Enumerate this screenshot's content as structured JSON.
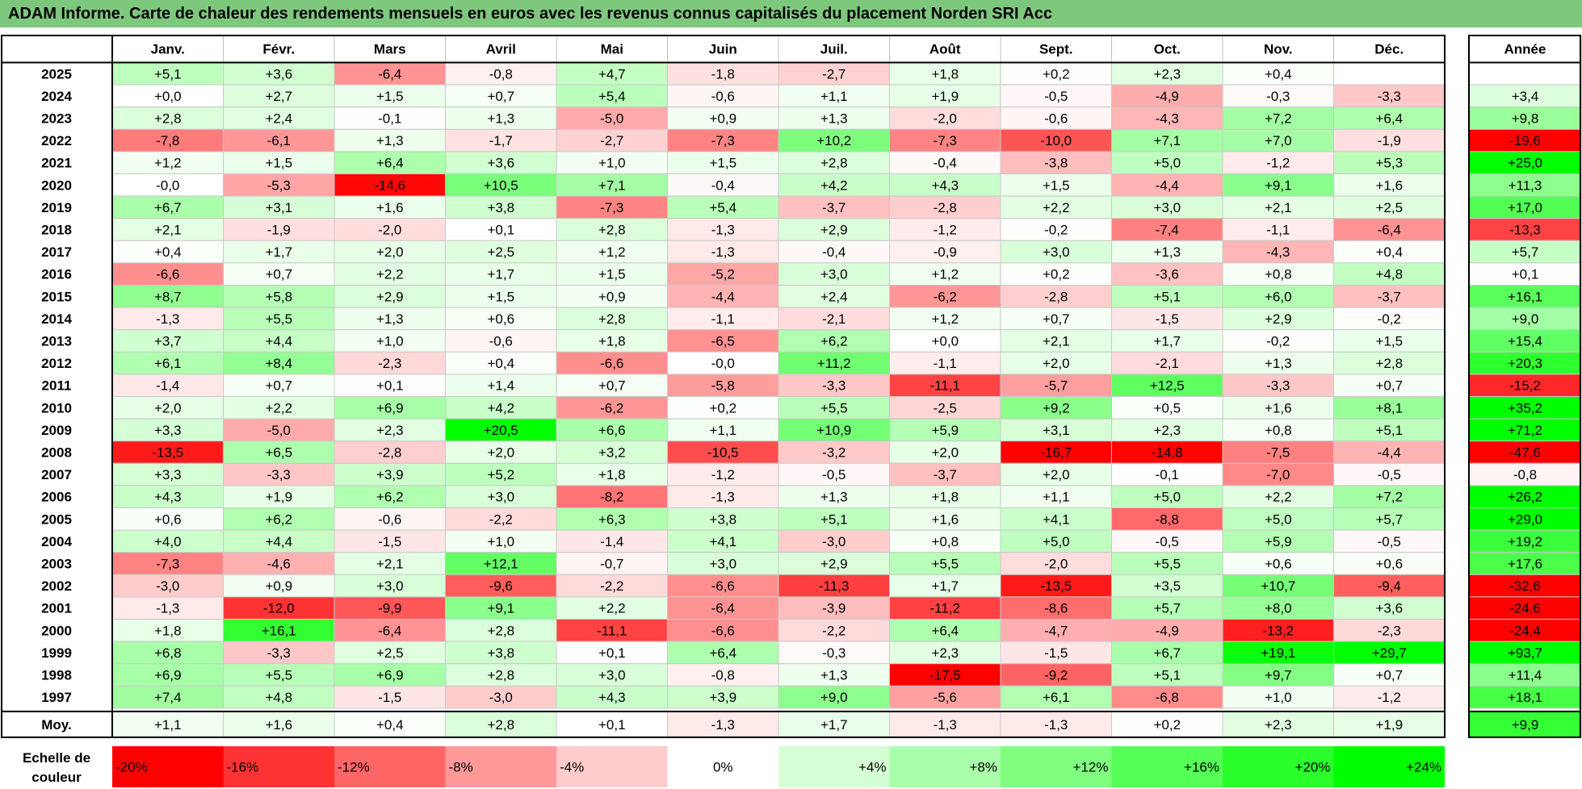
{
  "title": "ADAM Informe. Carte de chaleur des rendements mensuels en euros avec les revenus connus capitalisés du placement Norden SRI Acc",
  "chart_data": {
    "type": "heatmap",
    "months": [
      "Janv.",
      "Févr.",
      "Mars",
      "Avril",
      "Mai",
      "Juin",
      "Juil.",
      "Août",
      "Sept.",
      "Oct.",
      "Nov.",
      "Déc."
    ],
    "year_header": "Année",
    "rows": [
      {
        "year": "2025",
        "values": [
          "+5,1",
          "+3,6",
          "-6,4",
          "-0,8",
          "+4,7",
          "-1,8",
          "-2,7",
          "+1,8",
          "+0,2",
          "+2,3",
          "+0,4",
          ""
        ],
        "annual": ""
      },
      {
        "year": "2024",
        "values": [
          "+0,0",
          "+2,7",
          "+1,5",
          "+0,7",
          "+5,4",
          "-0,6",
          "+1,1",
          "+1,9",
          "-0,5",
          "-4,9",
          "-0,3",
          "-3,3"
        ],
        "annual": "+3,4"
      },
      {
        "year": "2023",
        "values": [
          "+2,8",
          "+2,4",
          "-0,1",
          "+1,3",
          "-5,0",
          "+0,9",
          "+1,3",
          "-2,0",
          "-0,6",
          "-4,3",
          "+7,2",
          "+6,4"
        ],
        "annual": "+9,8"
      },
      {
        "year": "2022",
        "values": [
          "-7,8",
          "-6,1",
          "+1,3",
          "-1,7",
          "-2,7",
          "-7,3",
          "+10,2",
          "-7,3",
          "-10,0",
          "+7,1",
          "+7,0",
          "-1,9"
        ],
        "annual": "-19,6"
      },
      {
        "year": "2021",
        "values": [
          "+1,2",
          "+1,5",
          "+6,4",
          "+3,6",
          "+1,0",
          "+1,5",
          "+2,8",
          "-0,4",
          "-3,8",
          "+5,0",
          "-1,2",
          "+5,3"
        ],
        "annual": "+25,0"
      },
      {
        "year": "2020",
        "values": [
          "-0,0",
          "-5,3",
          "-14,6",
          "+10,5",
          "+7,1",
          "-0,4",
          "+4,2",
          "+4,3",
          "+1,5",
          "-4,4",
          "+9,1",
          "+1,6"
        ],
        "annual": "+11,3"
      },
      {
        "year": "2019",
        "values": [
          "+6,7",
          "+3,1",
          "+1,6",
          "+3,8",
          "-7,3",
          "+5,4",
          "-3,7",
          "-2,8",
          "+2,2",
          "+3,0",
          "+2,1",
          "+2,5"
        ],
        "annual": "+17,0"
      },
      {
        "year": "2018",
        "values": [
          "+2,1",
          "-1,9",
          "-2,0",
          "+0,1",
          "+2,8",
          "-1,3",
          "+2,9",
          "-1,2",
          "-0,2",
          "-7,4",
          "-1,1",
          "-6,4"
        ],
        "annual": "-13,3"
      },
      {
        "year": "2017",
        "values": [
          "+0,4",
          "+1,7",
          "+2,0",
          "+2,5",
          "+1,2",
          "-1,3",
          "-0,4",
          "-0,9",
          "+3,0",
          "+1,3",
          "-4,3",
          "+0,4"
        ],
        "annual": "+5,7"
      },
      {
        "year": "2016",
        "values": [
          "-6,6",
          "+0,7",
          "+2,2",
          "+1,7",
          "+1,5",
          "-5,2",
          "+3,0",
          "+1,2",
          "+0,2",
          "-3,6",
          "+0,8",
          "+4,8"
        ],
        "annual": "+0,1"
      },
      {
        "year": "2015",
        "values": [
          "+8,7",
          "+5,8",
          "+2,9",
          "+1,5",
          "+0,9",
          "-4,4",
          "+2,4",
          "-6,2",
          "-2,8",
          "+5,1",
          "+6,0",
          "-3,7"
        ],
        "annual": "+16,1"
      },
      {
        "year": "2014",
        "values": [
          "-1,3",
          "+5,5",
          "+1,3",
          "+0,6",
          "+2,8",
          "-1,1",
          "-2,1",
          "+1,2",
          "+0,7",
          "-1,5",
          "+2,9",
          "-0,2"
        ],
        "annual": "+9,0"
      },
      {
        "year": "2013",
        "values": [
          "+3,7",
          "+4,4",
          "+1,0",
          "-0,6",
          "+1,8",
          "-6,5",
          "+6,2",
          "+0,0",
          "+2,1",
          "+1,7",
          "-0,2",
          "+1,5"
        ],
        "annual": "+15,4"
      },
      {
        "year": "2012",
        "values": [
          "+6,1",
          "+8,4",
          "-2,3",
          "+0,4",
          "-6,6",
          "-0,0",
          "+11,2",
          "-1,1",
          "+2,0",
          "-2,1",
          "+1,3",
          "+2,8"
        ],
        "annual": "+20,3"
      },
      {
        "year": "2011",
        "values": [
          "-1,4",
          "+0,7",
          "+0,1",
          "+1,4",
          "+0,7",
          "-5,8",
          "-3,3",
          "-11,1",
          "-5,7",
          "+12,5",
          "-3,3",
          "+0,7"
        ],
        "annual": "-15,2"
      },
      {
        "year": "2010",
        "values": [
          "+2,0",
          "+2,2",
          "+6,9",
          "+4,2",
          "-6,2",
          "+0,2",
          "+5,5",
          "-2,5",
          "+9,2",
          "+0,5",
          "+1,6",
          "+8,1"
        ],
        "annual": "+35,2"
      },
      {
        "year": "2009",
        "values": [
          "+3,3",
          "-5,0",
          "+2,3",
          "+20,5",
          "+6,6",
          "+1,1",
          "+10,9",
          "+5,9",
          "+3,1",
          "+2,3",
          "+0,8",
          "+5,1"
        ],
        "annual": "+71,2"
      },
      {
        "year": "2008",
        "values": [
          "-13,5",
          "+6,5",
          "-2,8",
          "+2,0",
          "+3,2",
          "-10,5",
          "-3,2",
          "+2,0",
          "-16,7",
          "-14,8",
          "-7,5",
          "-4,4"
        ],
        "annual": "-47,6"
      },
      {
        "year": "2007",
        "values": [
          "+3,3",
          "-3,3",
          "+3,9",
          "+5,2",
          "+1,8",
          "-1,2",
          "-0,5",
          "-3,7",
          "+2,0",
          "-0,1",
          "-7,0",
          "-0,5"
        ],
        "annual": "-0,8"
      },
      {
        "year": "2006",
        "values": [
          "+4,3",
          "+1,9",
          "+6,2",
          "+3,0",
          "-8,2",
          "-1,3",
          "+1,3",
          "+1,8",
          "+1,1",
          "+5,0",
          "+2,2",
          "+7,2"
        ],
        "annual": "+26,2"
      },
      {
        "year": "2005",
        "values": [
          "+0,6",
          "+6,2",
          "-0,6",
          "-2,2",
          "+6,3",
          "+3,8",
          "+5,1",
          "+1,6",
          "+4,1",
          "-8,8",
          "+5,0",
          "+5,7"
        ],
        "annual": "+29,0"
      },
      {
        "year": "2004",
        "values": [
          "+4,0",
          "+4,4",
          "-1,5",
          "+1,0",
          "-1,4",
          "+4,1",
          "-3,0",
          "+0,8",
          "+5,0",
          "-0,5",
          "+5,9",
          "-0,5"
        ],
        "annual": "+19,2"
      },
      {
        "year": "2003",
        "values": [
          "-7,3",
          "-4,6",
          "+2,1",
          "+12,1",
          "-0,7",
          "+3,0",
          "+2,9",
          "+5,5",
          "-2,0",
          "+5,5",
          "+0,6",
          "+0,6"
        ],
        "annual": "+17,6"
      },
      {
        "year": "2002",
        "values": [
          "-3,0",
          "+0,9",
          "+3,0",
          "-9,6",
          "-2,2",
          "-6,6",
          "-11,3",
          "+1,7",
          "-13,5",
          "+3,5",
          "+10,7",
          "-9,4"
        ],
        "annual": "-32,6"
      },
      {
        "year": "2001",
        "values": [
          "-1,3",
          "-12,0",
          "-9,9",
          "+9,1",
          "+2,2",
          "-6,4",
          "-3,9",
          "-11,2",
          "-8,6",
          "+5,7",
          "+8,0",
          "+3,6"
        ],
        "annual": "-24,6"
      },
      {
        "year": "2000",
        "values": [
          "+1,8",
          "+16,1",
          "-6,4",
          "+2,8",
          "-11,1",
          "-6,6",
          "-2,2",
          "+6,4",
          "-4,7",
          "-4,9",
          "-13,2",
          "-2,3"
        ],
        "annual": "-24,4"
      },
      {
        "year": "1999",
        "values": [
          "+6,8",
          "-3,3",
          "+2,5",
          "+3,8",
          "+0,1",
          "+6,4",
          "-0,3",
          "+2,3",
          "-1,5",
          "+6,7",
          "+19,1",
          "+29,7"
        ],
        "annual": "+93,7"
      },
      {
        "year": "1998",
        "values": [
          "+6,9",
          "+5,5",
          "+6,9",
          "+2,8",
          "+3,0",
          "-0,8",
          "+1,3",
          "-17,5",
          "-9,2",
          "+5,1",
          "+9,7",
          "+0,7"
        ],
        "annual": "+11,4"
      },
      {
        "year": "1997",
        "values": [
          "+7,4",
          "+4,8",
          "-1,5",
          "-3,0",
          "+4,3",
          "+3,9",
          "+9,0",
          "-5,6",
          "+6,1",
          "-6,8",
          "+1,0",
          "-1,2"
        ],
        "annual": "+18,1"
      }
    ],
    "average_row": {
      "label": "Moy.",
      "values": [
        "+1,1",
        "+1,6",
        "+0,4",
        "+2,8",
        "+0,1",
        "-1,3",
        "+1,7",
        "-1,3",
        "-1,3",
        "+0,2",
        "+2,3",
        "+1,9"
      ],
      "annual": "+9,9"
    },
    "color_scale": {
      "label_line1": "Echelle de",
      "label_line2": "couleur",
      "stops": [
        "-20%",
        "-16%",
        "-12%",
        "-8%",
        "-4%",
        "0%",
        "+4%",
        "+8%",
        "+12%",
        "+16%",
        "+20%",
        "+24%"
      ]
    },
    "colors": {
      "negative": "#ff0000",
      "neutral": "#ffffff",
      "positive": "#00ff00",
      "title_bar": "#7ec87e"
    }
  }
}
